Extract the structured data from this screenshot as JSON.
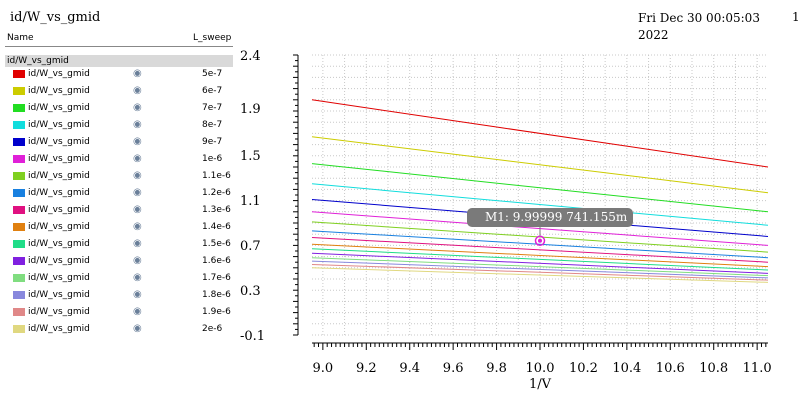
{
  "window_title": "id/W_vs_gmid",
  "timestamp": "Fri Dec 30 00:05:03 2022",
  "page_index": "1",
  "legend": {
    "col_name": "Name",
    "col_sweep": "L_sweep",
    "group": "id/W_vs_gmid",
    "visibility_icon": "eye-icon"
  },
  "marker": {
    "label": "M1: 9.99999 741.155m",
    "x": 10.0,
    "y": 0.741,
    "color": "#e020d8"
  },
  "chart_data": {
    "type": "line",
    "title": "",
    "xlabel": "1/V",
    "ylabel": "",
    "xlim": [
      8.95,
      11.05
    ],
    "ylim": [
      -0.1,
      2.4
    ],
    "x_ticks": [
      "9.0",
      "9.2",
      "9.4",
      "9.6",
      "9.8",
      "10.0",
      "10.2",
      "10.4",
      "10.6",
      "10.8",
      "11.0"
    ],
    "y_ticks": [
      "2.4",
      "1.9",
      "1.5",
      "1.1",
      "0.7",
      "0.3",
      "-0.1"
    ],
    "grid": true,
    "x": [
      8.95,
      11.05
    ],
    "series": [
      {
        "name": "id/W_vs_gmid",
        "sweep": "5e-7",
        "color": "#e00000",
        "values": [
          2.0,
          1.4
        ]
      },
      {
        "name": "id/W_vs_gmid",
        "sweep": "6e-7",
        "color": "#cccc00",
        "values": [
          1.67,
          1.17
        ]
      },
      {
        "name": "id/W_vs_gmid",
        "sweep": "7e-7",
        "color": "#22dd22",
        "values": [
          1.43,
          1.0
        ]
      },
      {
        "name": "id/W_vs_gmid",
        "sweep": "8e-7",
        "color": "#11dddd",
        "values": [
          1.25,
          0.88
        ]
      },
      {
        "name": "id/W_vs_gmid",
        "sweep": "9e-7",
        "color": "#0000cc",
        "values": [
          1.11,
          0.78
        ]
      },
      {
        "name": "id/W_vs_gmid",
        "sweep": "1e-6",
        "color": "#e020d8",
        "values": [
          1.0,
          0.7
        ]
      },
      {
        "name": "id/W_vs_gmid",
        "sweep": "1.1e-6",
        "color": "#7fd020",
        "values": [
          0.91,
          0.64
        ]
      },
      {
        "name": "id/W_vs_gmid",
        "sweep": "1.2e-6",
        "color": "#1880e0",
        "values": [
          0.83,
          0.59
        ]
      },
      {
        "name": "id/W_vs_gmid",
        "sweep": "1.3e-6",
        "color": "#e01080",
        "values": [
          0.77,
          0.55
        ]
      },
      {
        "name": "id/W_vs_gmid",
        "sweep": "1.4e-6",
        "color": "#e08010",
        "values": [
          0.71,
          0.51
        ]
      },
      {
        "name": "id/W_vs_gmid",
        "sweep": "1.5e-6",
        "color": "#20dd88",
        "values": [
          0.67,
          0.48
        ]
      },
      {
        "name": "id/W_vs_gmid",
        "sweep": "1.6e-6",
        "color": "#8020e0",
        "values": [
          0.63,
          0.45
        ]
      },
      {
        "name": "id/W_vs_gmid",
        "sweep": "1.7e-6",
        "color": "#80dd80",
        "values": [
          0.59,
          0.43
        ]
      },
      {
        "name": "id/W_vs_gmid",
        "sweep": "1.8e-6",
        "color": "#8888dd",
        "values": [
          0.56,
          0.41
        ]
      },
      {
        "name": "id/W_vs_gmid",
        "sweep": "1.9e-6",
        "color": "#e08888",
        "values": [
          0.53,
          0.39
        ]
      },
      {
        "name": "id/W_vs_gmid",
        "sweep": "2e-6",
        "color": "#e0d880",
        "values": [
          0.5,
          0.37
        ]
      }
    ]
  }
}
